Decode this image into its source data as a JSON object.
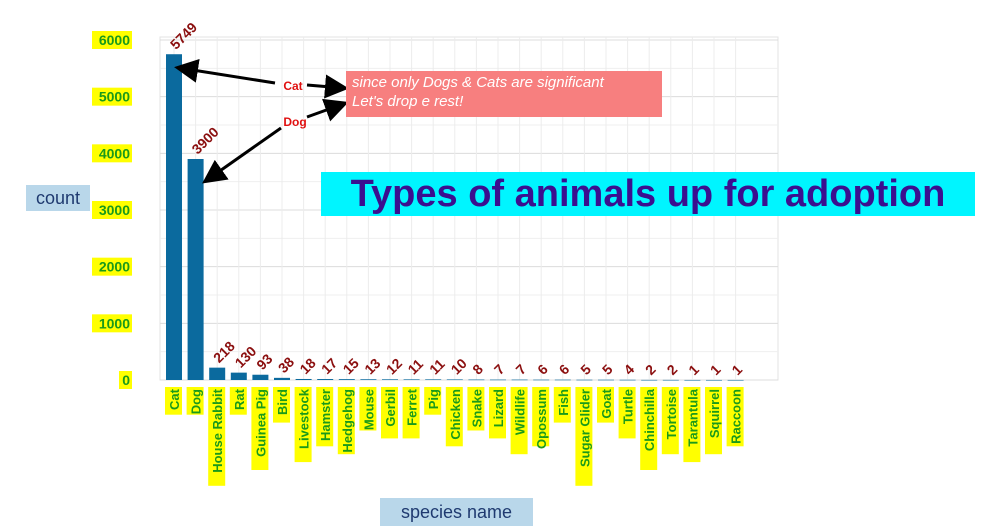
{
  "chart_data": {
    "type": "bar",
    "title": "Types of animals up for adoption",
    "xlabel": "species name",
    "ylabel": "count",
    "categories": [
      "Cat",
      "Dog",
      "House Rabbit",
      "Rat",
      "Guinea Pig",
      "Bird",
      "Livestock",
      "Hamster",
      "Hedgehog",
      "Mouse",
      "Gerbil",
      "Ferret",
      "Pig",
      "Chicken",
      "Snake",
      "Lizard",
      "Wildlife",
      "Opossum",
      "Fish",
      "Sugar Glider",
      "Goat",
      "Turtle",
      "Chinchilla",
      "Tortoise",
      "Tarantula",
      "Squirrel",
      "Raccoon"
    ],
    "values": [
      5749,
      3900,
      218,
      130,
      93,
      38,
      18,
      17,
      15,
      13,
      12,
      11,
      11,
      10,
      8,
      7,
      7,
      6,
      6,
      5,
      5,
      4,
      2,
      2,
      1,
      1,
      1
    ],
    "yticks": [
      0,
      1000,
      2000,
      3000,
      4000,
      5000,
      6000
    ],
    "ylim": [
      0,
      6000
    ],
    "grid": true,
    "bar_color": "#0b6a9e",
    "annotation": {
      "lines": [
        "since only Dogs & Cats are significant",
        "Let's drop e rest!"
      ],
      "arrow_labels": [
        "Cat",
        "Dog"
      ]
    }
  }
}
